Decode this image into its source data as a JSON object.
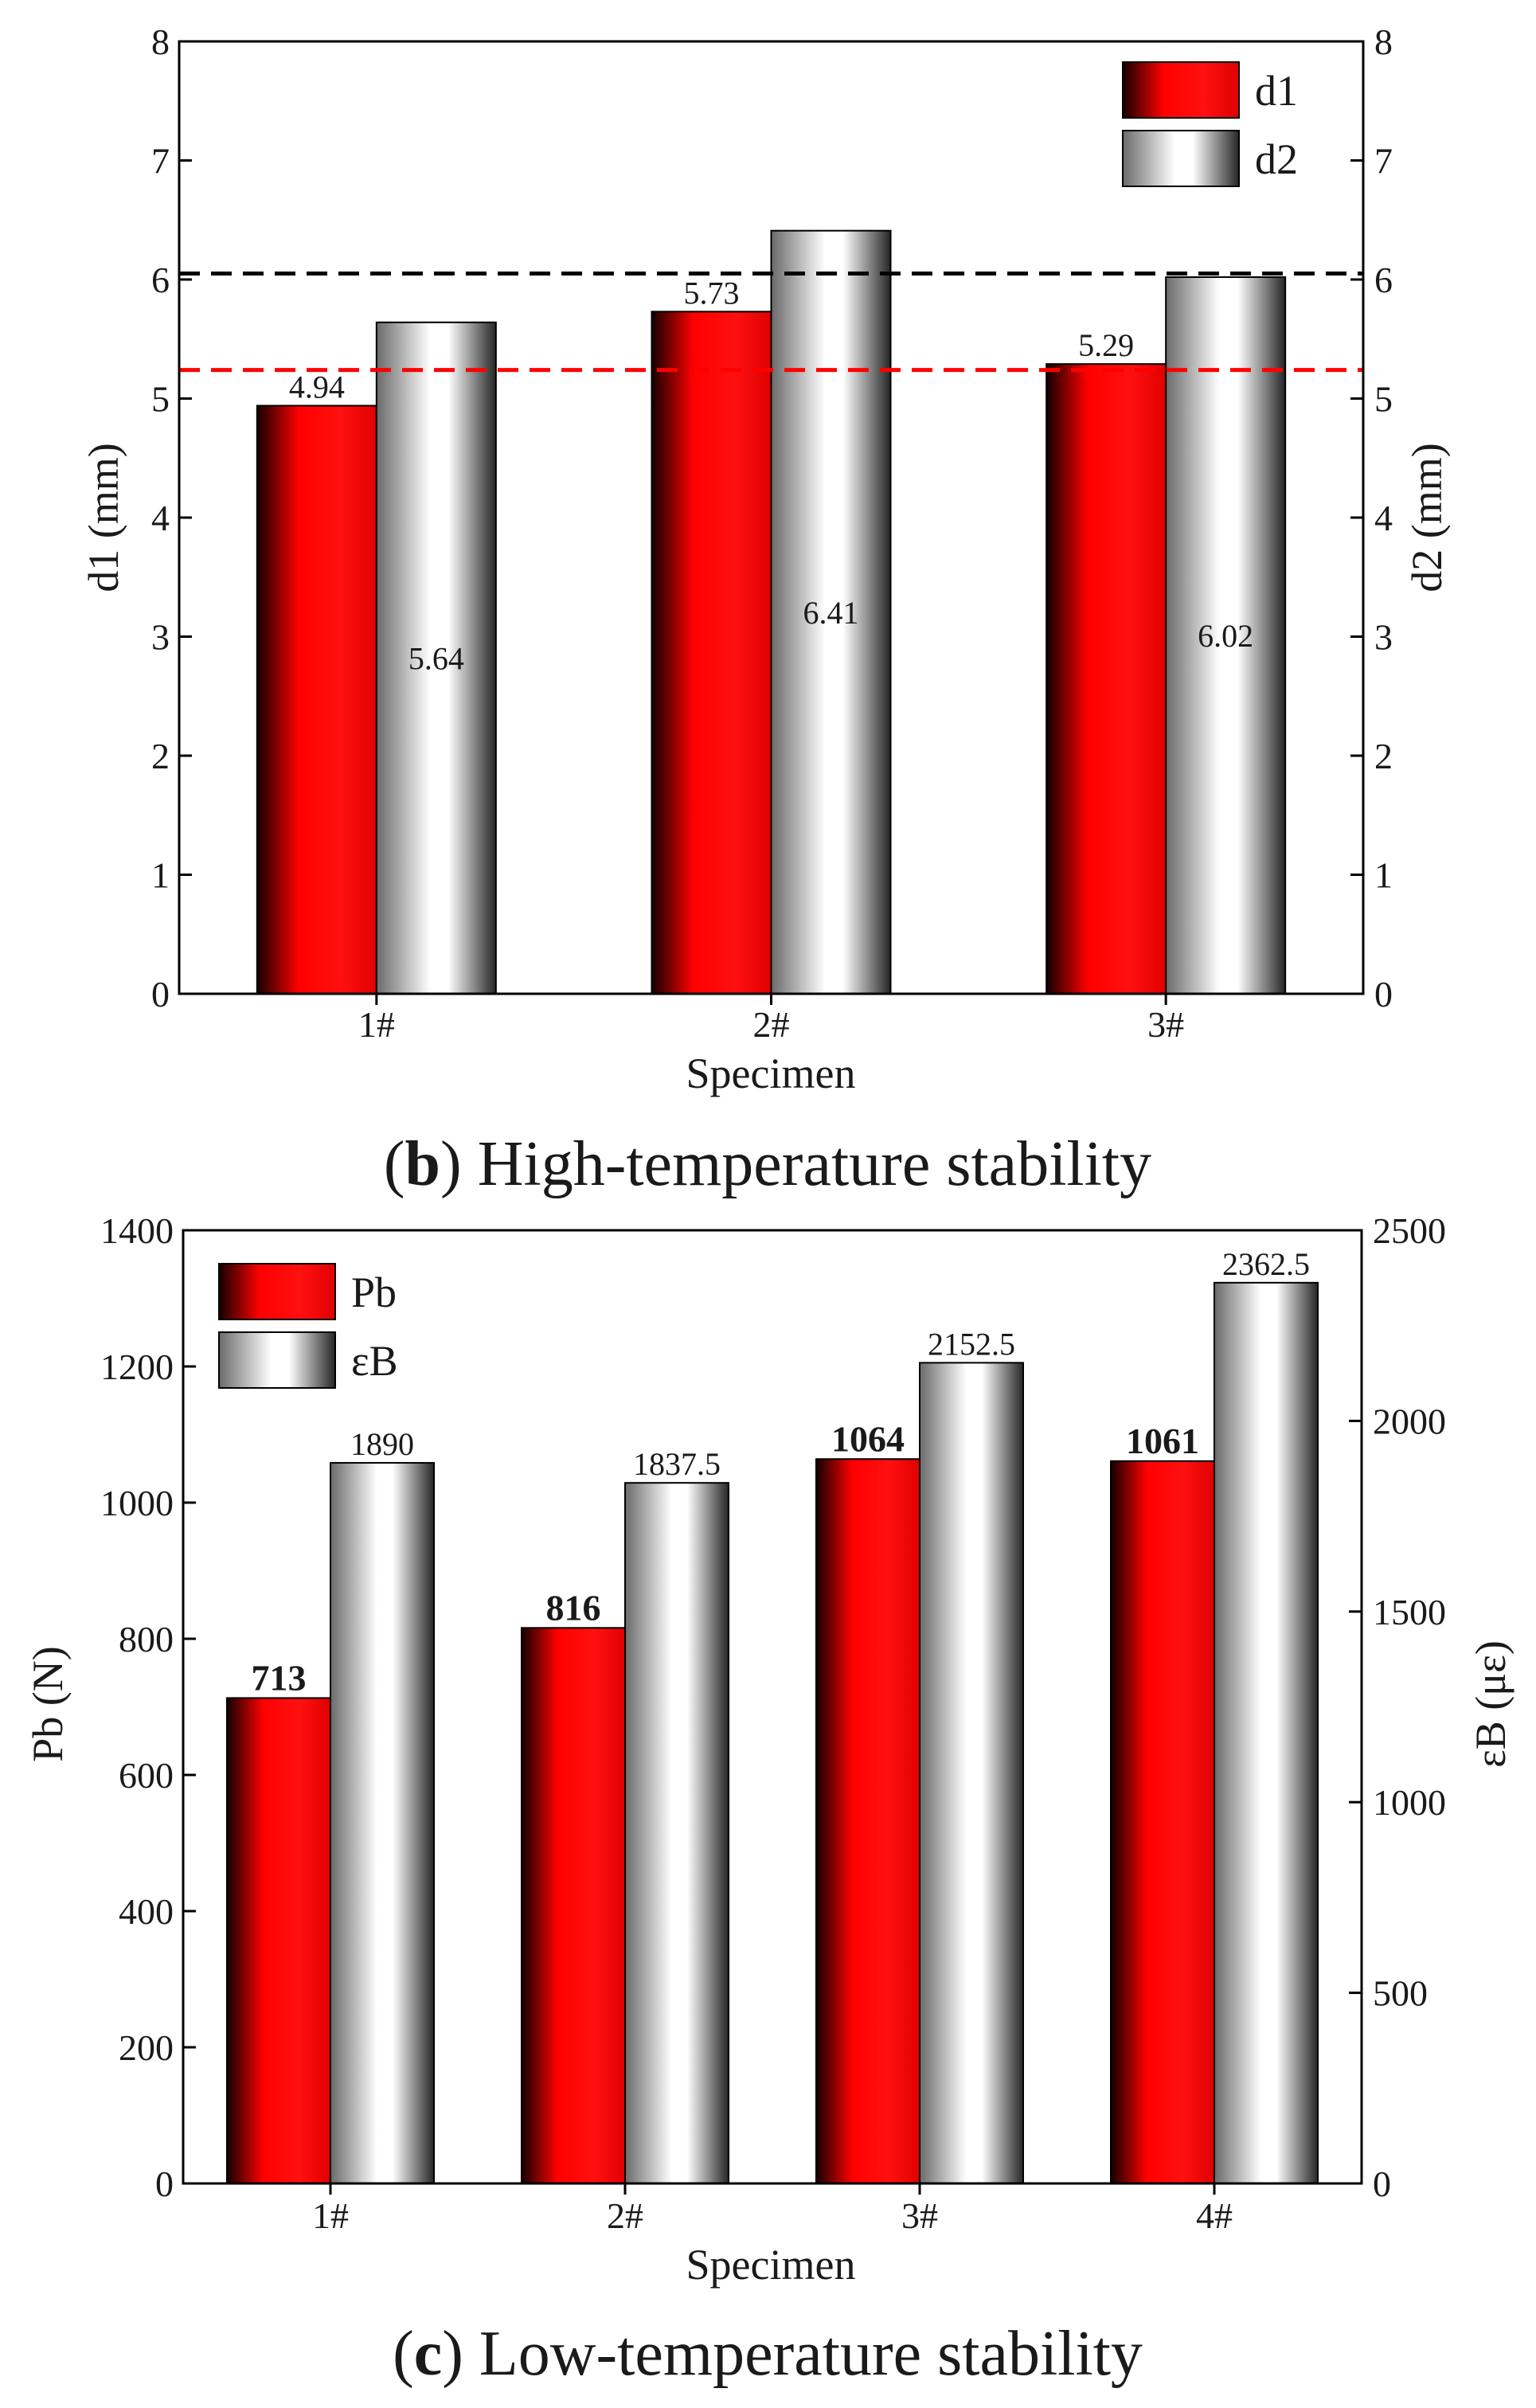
{
  "chart_data": [
    {
      "type": "bar",
      "caption_letter": "b",
      "caption_text": " High-temperature stability",
      "xlabel": "Specimen",
      "ylabel_left": "d1 (mm)",
      "ylabel_right": "d2 (mm)",
      "categories": [
        "1#",
        "2#",
        "3#"
      ],
      "ylim_left": [
        0,
        8
      ],
      "ylim_right": [
        0,
        8
      ],
      "yticks_left": [
        "0",
        "1",
        "2",
        "3",
        "4",
        "5",
        "6",
        "7",
        "8"
      ],
      "yticks_right": [
        "0",
        "1",
        "2",
        "3",
        "4",
        "5",
        "6",
        "7",
        "8"
      ],
      "legend_position": "top-right",
      "grid": false,
      "series": [
        {
          "name": "d1",
          "axis": "left",
          "color": "#ff0000",
          "values": [
            4.94,
            5.73,
            5.29
          ],
          "labels": [
            "4.94",
            "5.73",
            "5.29"
          ],
          "label_position": "top",
          "label_bold": false
        },
        {
          "name": "d2",
          "axis": "right",
          "color": "#ffffff",
          "values": [
            5.64,
            6.41,
            6.02
          ],
          "labels": [
            "5.64",
            "6.41",
            "6.02"
          ],
          "label_position": "middle",
          "label_bold": false
        }
      ],
      "reference_lines": [
        {
          "axis": "left",
          "value": 6.05,
          "color": "#000000",
          "style": "dashed"
        },
        {
          "axis": "left",
          "value": 5.24,
          "color": "#ff0000",
          "style": "dashed"
        }
      ]
    },
    {
      "type": "bar",
      "caption_letter": "c",
      "caption_text": " Low-temperature stability",
      "xlabel": "Specimen",
      "ylabel_left": "Pb (N)",
      "ylabel_right": "εB (με)",
      "categories": [
        "1#",
        "2#",
        "3#",
        "4#"
      ],
      "ylim_left": [
        0,
        1400
      ],
      "ylim_right": [
        0,
        2500
      ],
      "yticks_left": [
        "0",
        "200",
        "400",
        "600",
        "800",
        "1000",
        "1200",
        "1400"
      ],
      "yticks_right": [
        "0",
        "500",
        "1000",
        "1500",
        "2000",
        "2500"
      ],
      "legend_position": "top-left",
      "grid": false,
      "series": [
        {
          "name": "Pb",
          "axis": "left",
          "color": "#ff0000",
          "values": [
            713,
            816,
            1064,
            1061
          ],
          "labels": [
            "713",
            "816",
            "1064",
            "1061"
          ],
          "label_position": "top",
          "label_bold": true
        },
        {
          "name": "εB",
          "axis": "right",
          "color": "#ffffff",
          "values": [
            1890,
            1837.5,
            2152.5,
            2362.5
          ],
          "labels": [
            "1890",
            "1837.5",
            "2152.5",
            "2362.5"
          ],
          "label_position": "top",
          "label_bold": false
        }
      ],
      "reference_lines": []
    }
  ]
}
